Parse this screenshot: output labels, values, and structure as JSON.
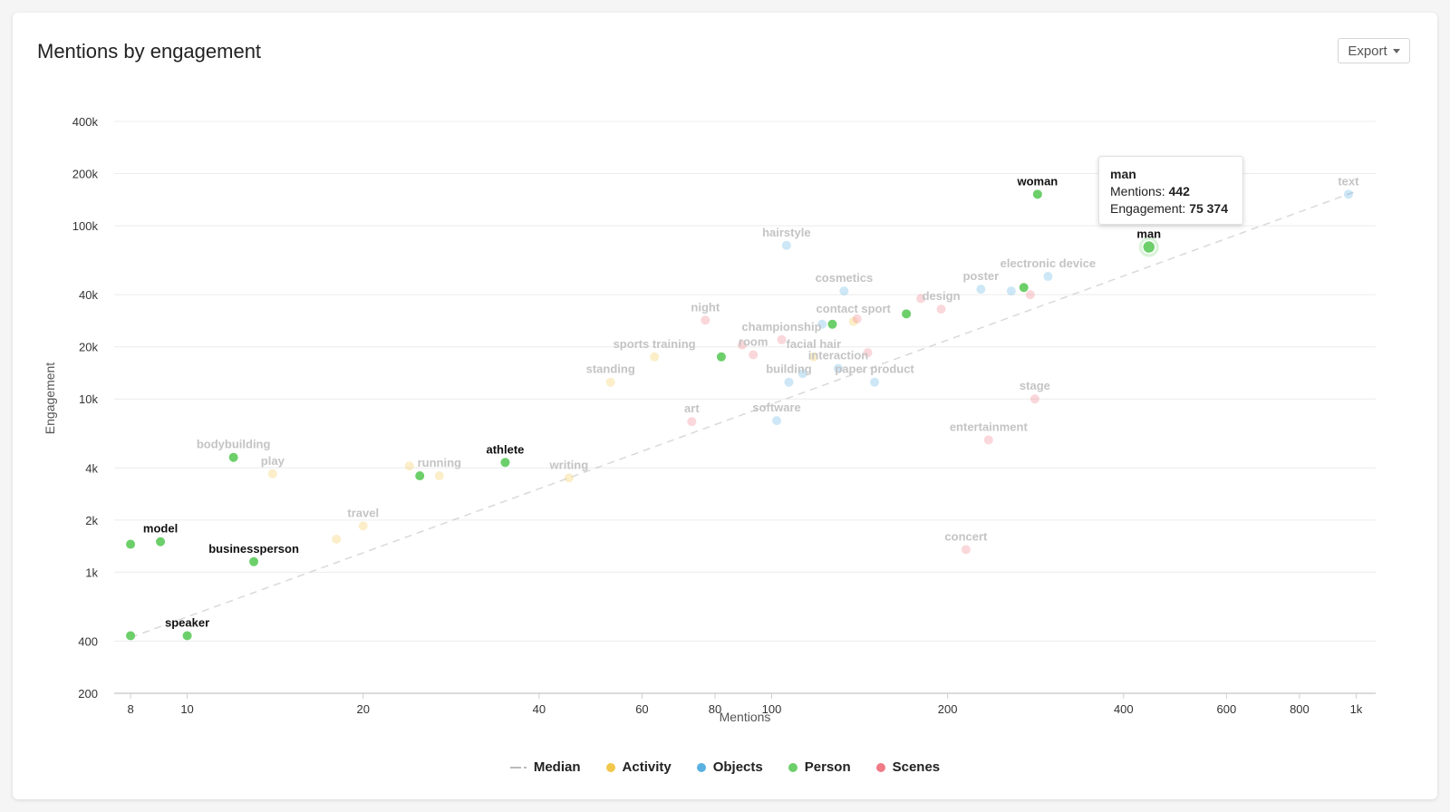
{
  "header": {
    "title": "Mentions by engagement",
    "export_label": "Export"
  },
  "colors": {
    "Activity": "#f1c84b",
    "Objects": "#5ab0e0",
    "Person": "#6ccf6a",
    "Scenes": "#ef7b86",
    "Median": "#bbbbbb"
  },
  "legend": {
    "median": "Median",
    "activity": "Activity",
    "objects": "Objects",
    "person": "Person",
    "scenes": "Scenes"
  },
  "tooltip": {
    "name": "man",
    "mentions_label": "Mentions:",
    "mentions_value": "442",
    "engagement_label": "Engagement:",
    "engagement_value": "75 374"
  },
  "chart_data": {
    "type": "scatter",
    "title": "Mentions by engagement",
    "xlabel": "Mentions",
    "ylabel": "Engagement",
    "x_scale": "log",
    "y_scale": "log",
    "xlim": [
      7.5,
      1080
    ],
    "ylim": [
      200,
      400000
    ],
    "grid": true,
    "legend_position": "bottom",
    "x_ticks": [
      {
        "v": 8,
        "label": "8"
      },
      {
        "v": 10,
        "label": "10"
      },
      {
        "v": 20,
        "label": "20"
      },
      {
        "v": 40,
        "label": "40"
      },
      {
        "v": 60,
        "label": "60"
      },
      {
        "v": 80,
        "label": "80"
      },
      {
        "v": 100,
        "label": "100"
      },
      {
        "v": 200,
        "label": "200"
      },
      {
        "v": 400,
        "label": "400"
      },
      {
        "v": 600,
        "label": "600"
      },
      {
        "v": 800,
        "label": "800"
      },
      {
        "v": 1000,
        "label": "1k"
      }
    ],
    "y_ticks": [
      {
        "v": 200,
        "label": "200"
      },
      {
        "v": 400,
        "label": "400"
      },
      {
        "v": 1000,
        "label": "1k"
      },
      {
        "v": 2000,
        "label": "2k"
      },
      {
        "v": 4000,
        "label": "4k"
      },
      {
        "v": 10000,
        "label": "10k"
      },
      {
        "v": 20000,
        "label": "20k"
      },
      {
        "v": 40000,
        "label": "40k"
      },
      {
        "v": 100000,
        "label": "100k"
      },
      {
        "v": 200000,
        "label": "200k"
      },
      {
        "v": 400000,
        "label": "400k"
      }
    ],
    "median_line": {
      "x": [
        8,
        1000
      ],
      "y": [
        420,
        158000
      ]
    },
    "points": [
      {
        "label": "woman",
        "cat": "Person",
        "x": 285,
        "y": 152000,
        "hl": true
      },
      {
        "label": "man",
        "cat": "Person",
        "x": 442,
        "y": 75374,
        "hl": true,
        "selected": true
      },
      {
        "label": "athlete",
        "cat": "Person",
        "x": 35,
        "y": 4300,
        "hl": true
      },
      {
        "label": "model",
        "cat": "Person",
        "x": 9,
        "y": 1500,
        "hl": true
      },
      {
        "label": "",
        "cat": "Person",
        "x": 8,
        "y": 1450,
        "hl": true
      },
      {
        "label": "businessperson",
        "cat": "Person",
        "x": 13,
        "y": 1150,
        "hl": true
      },
      {
        "label": "speaker",
        "cat": "Person",
        "x": 10,
        "y": 430,
        "hl": true
      },
      {
        "label": "",
        "cat": "Person",
        "x": 8,
        "y": 430,
        "hl": true
      },
      {
        "label": "",
        "cat": "Person",
        "x": 12,
        "y": 4600,
        "hl": true
      },
      {
        "label": "",
        "cat": "Person",
        "x": 25,
        "y": 3600,
        "hl": true
      },
      {
        "label": "",
        "cat": "Person",
        "x": 82,
        "y": 17500,
        "hl": true
      },
      {
        "label": "",
        "cat": "Person",
        "x": 127,
        "y": 27000,
        "hl": true
      },
      {
        "label": "",
        "cat": "Person",
        "x": 170,
        "y": 31000,
        "hl": true
      },
      {
        "label": "",
        "cat": "Person",
        "x": 270,
        "y": 44000,
        "hl": true
      },
      {
        "label": "bodybuilding",
        "cat": "Person",
        "x": 12,
        "y": 4600,
        "hl": false,
        "labelOnly": true
      },
      {
        "label": "play",
        "cat": "Activity",
        "x": 14,
        "y": 3700,
        "hl": false
      },
      {
        "label": "running",
        "cat": "Activity",
        "x": 27,
        "y": 3600,
        "hl": false
      },
      {
        "label": "",
        "cat": "Activity",
        "x": 24,
        "y": 4100,
        "hl": false
      },
      {
        "label": "travel",
        "cat": "Activity",
        "x": 20,
        "y": 1850,
        "hl": false
      },
      {
        "label": "",
        "cat": "Activity",
        "x": 18,
        "y": 1550,
        "hl": false
      },
      {
        "label": "writing",
        "cat": "Activity",
        "x": 45,
        "y": 3500,
        "hl": false
      },
      {
        "label": "standing",
        "cat": "Activity",
        "x": 53,
        "y": 12500,
        "hl": false
      },
      {
        "label": "sports training",
        "cat": "Activity",
        "x": 63,
        "y": 17500,
        "hl": false
      },
      {
        "label": "contact sport",
        "cat": "Activity",
        "x": 138,
        "y": 28000,
        "hl": false
      },
      {
        "label": "facial hair",
        "cat": "Activity",
        "x": 118,
        "y": 17500,
        "hl": false
      },
      {
        "label": "hairstyle",
        "cat": "Objects",
        "x": 106,
        "y": 77000,
        "hl": false
      },
      {
        "label": "cosmetics",
        "cat": "Objects",
        "x": 133,
        "y": 42000,
        "hl": false
      },
      {
        "label": "electronic device",
        "cat": "Objects",
        "x": 297,
        "y": 51000,
        "hl": false
      },
      {
        "label": "poster",
        "cat": "Objects",
        "x": 228,
        "y": 43000,
        "hl": false
      },
      {
        "label": "",
        "cat": "Objects",
        "x": 257,
        "y": 42000,
        "hl": false
      },
      {
        "label": "",
        "cat": "Objects",
        "x": 122,
        "y": 27000,
        "hl": false
      },
      {
        "label": "building",
        "cat": "Objects",
        "x": 107,
        "y": 12500,
        "hl": false
      },
      {
        "label": "",
        "cat": "Objects",
        "x": 113,
        "y": 14000,
        "hl": false
      },
      {
        "label": "paper product",
        "cat": "Objects",
        "x": 150,
        "y": 12500,
        "hl": false
      },
      {
        "label": "interaction",
        "cat": "Objects",
        "x": 130,
        "y": 15000,
        "hl": false
      },
      {
        "label": "software",
        "cat": "Objects",
        "x": 102,
        "y": 7500,
        "hl": false
      },
      {
        "label": "text",
        "cat": "Objects",
        "x": 970,
        "y": 152000,
        "hl": false
      },
      {
        "label": "night",
        "cat": "Scenes",
        "x": 77,
        "y": 28500,
        "hl": false
      },
      {
        "label": "championship",
        "cat": "Scenes",
        "x": 104,
        "y": 22000,
        "hl": false
      },
      {
        "label": "room",
        "cat": "Scenes",
        "x": 93,
        "y": 18000,
        "hl": false
      },
      {
        "label": "",
        "cat": "Scenes",
        "x": 89,
        "y": 20500,
        "hl": false
      },
      {
        "label": "design",
        "cat": "Scenes",
        "x": 195,
        "y": 33000,
        "hl": false
      },
      {
        "label": "",
        "cat": "Scenes",
        "x": 180,
        "y": 38000,
        "hl": false
      },
      {
        "label": "",
        "cat": "Scenes",
        "x": 277,
        "y": 40000,
        "hl": false
      },
      {
        "label": "",
        "cat": "Scenes",
        "x": 146,
        "y": 18500,
        "hl": false
      },
      {
        "label": "",
        "cat": "Scenes",
        "x": 140,
        "y": 29000,
        "hl": false
      },
      {
        "label": "stage",
        "cat": "Scenes",
        "x": 282,
        "y": 10000,
        "hl": false
      },
      {
        "label": "entertainment",
        "cat": "Scenes",
        "x": 235,
        "y": 5800,
        "hl": false
      },
      {
        "label": "art",
        "cat": "Scenes",
        "x": 73,
        "y": 7400,
        "hl": false
      },
      {
        "label": "concert",
        "cat": "Scenes",
        "x": 215,
        "y": 1350,
        "hl": false
      }
    ]
  }
}
